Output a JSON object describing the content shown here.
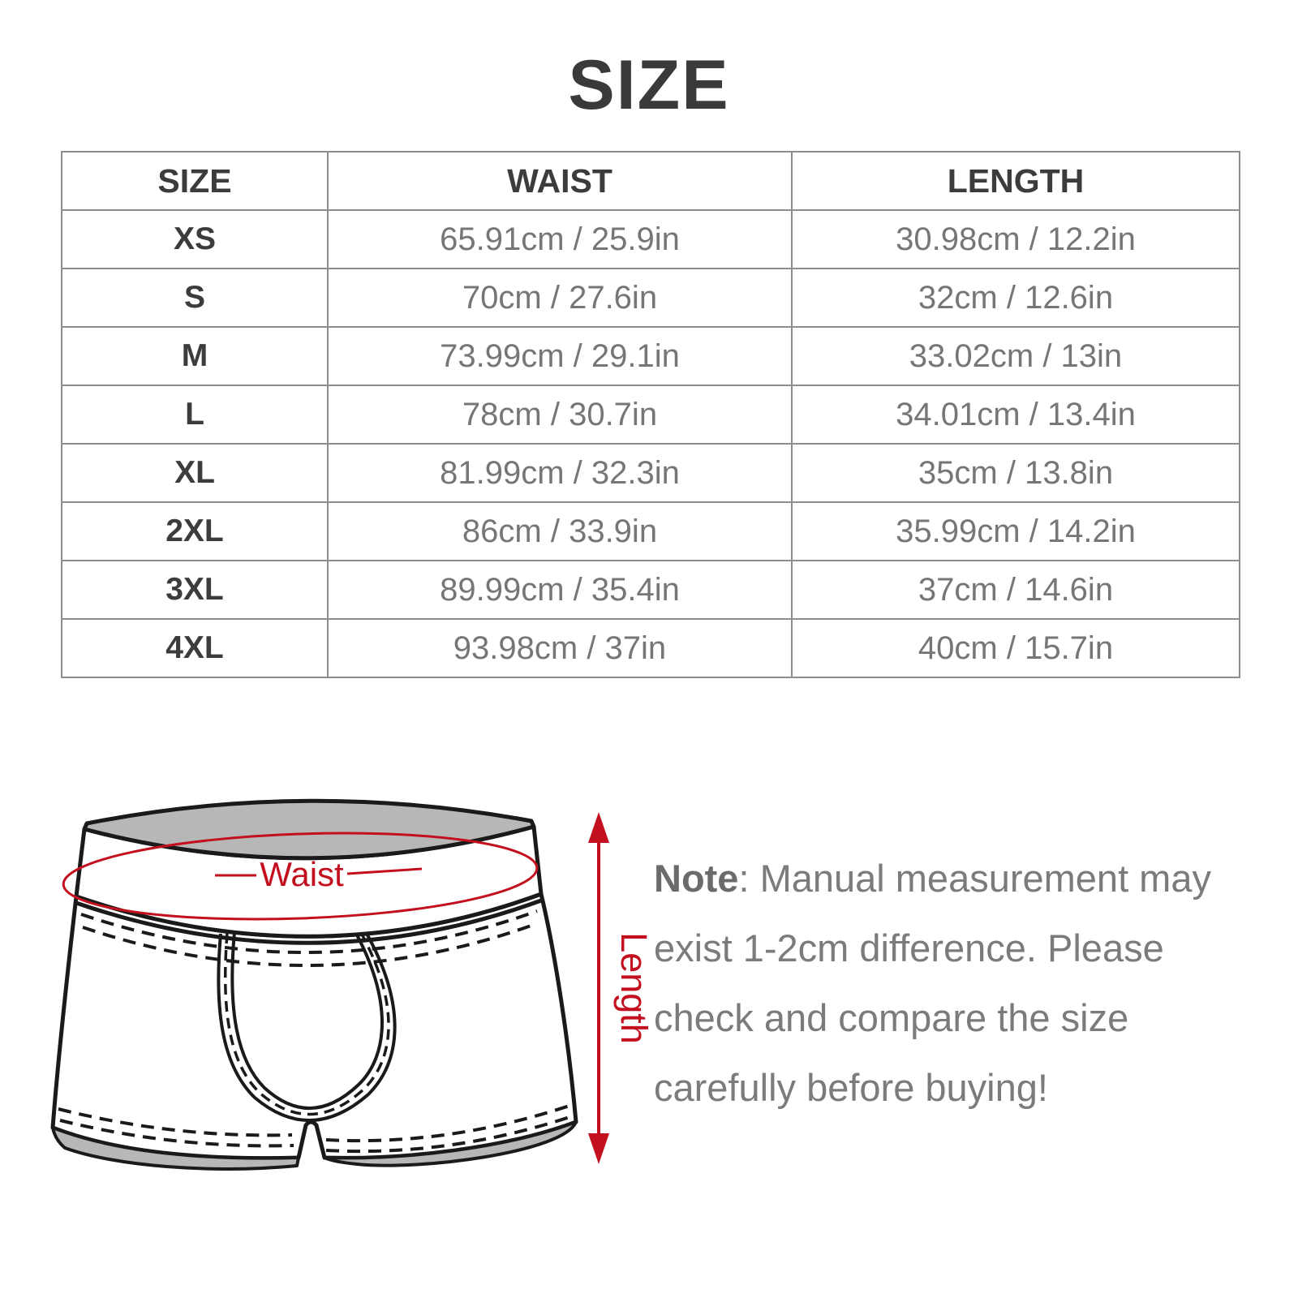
{
  "title": "SIZE",
  "table": {
    "headers": [
      "SIZE",
      "WAIST",
      "LENGTH"
    ],
    "rows": [
      {
        "size": "XS",
        "waist": "65.91cm / 25.9in",
        "length": "30.98cm / 12.2in"
      },
      {
        "size": "S",
        "waist": "70cm / 27.6in",
        "length": "32cm / 12.6in"
      },
      {
        "size": "M",
        "waist": "73.99cm / 29.1in",
        "length": "33.02cm / 13in"
      },
      {
        "size": "L",
        "waist": "78cm / 30.7in",
        "length": "34.01cm / 13.4in"
      },
      {
        "size": "XL",
        "waist": "81.99cm / 32.3in",
        "length": "35cm / 13.8in"
      },
      {
        "size": "2XL",
        "waist": "86cm / 33.9in",
        "length": "35.99cm / 14.2in"
      },
      {
        "size": "3XL",
        "waist": "89.99cm / 35.4in",
        "length": "37cm / 14.6in"
      },
      {
        "size": "4XL",
        "waist": "93.98cm / 37in",
        "length": "40cm / 15.7in"
      }
    ]
  },
  "diagram": {
    "waist_label": "Waist",
    "length_label": "Length",
    "accent_color": "#c3101f",
    "line_color": "#1a1a1a",
    "shade_color": "#b7b7b7"
  },
  "note": {
    "label": "Note",
    "text": ": Manual measurement may exist 1-2cm difference. Please check and compare the size carefully before buying!"
  },
  "chart_data": {
    "type": "table",
    "title": "SIZE",
    "columns": [
      "SIZE",
      "WAIST",
      "LENGTH"
    ],
    "rows": [
      [
        "XS",
        "65.91cm / 25.9in",
        "30.98cm / 12.2in"
      ],
      [
        "S",
        "70cm / 27.6in",
        "32cm / 12.6in"
      ],
      [
        "M",
        "73.99cm / 29.1in",
        "33.02cm / 13in"
      ],
      [
        "L",
        "78cm / 30.7in",
        "34.01cm / 13.4in"
      ],
      [
        "XL",
        "81.99cm / 32.3in",
        "35cm / 13.8in"
      ],
      [
        "2XL",
        "86cm / 33.9in",
        "35.99cm / 14.2in"
      ],
      [
        "3XL",
        "89.99cm / 35.4in",
        "37cm / 14.6in"
      ],
      [
        "4XL",
        "93.98cm / 37in",
        "40cm / 15.7in"
      ]
    ]
  }
}
